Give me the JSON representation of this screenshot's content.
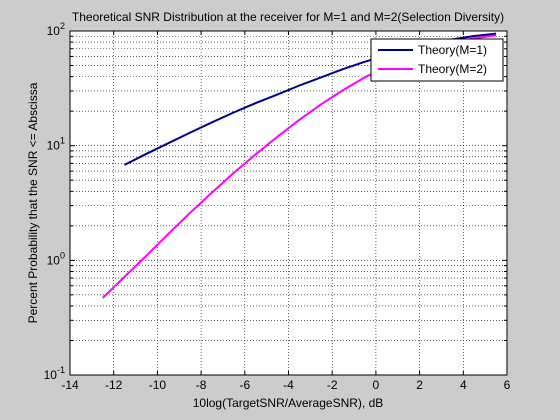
{
  "chart_data": {
    "type": "line",
    "title": "Theoretical SNR Distribution at the receiver for M=1 and M=2(Selection Diversity)",
    "xlabel": "10log(TargetSNR/AverageSNR), dB",
    "ylabel": "Percent Probability that the SNR <= Abscissa",
    "xlim": [
      -14,
      6
    ],
    "ylim": [
      0.1,
      100
    ],
    "yscale": "log",
    "grid": true,
    "legend_position": "top-right",
    "x_ticks": [
      -14,
      -12,
      -10,
      -8,
      -6,
      -4,
      -2,
      0,
      2,
      4,
      6
    ],
    "x_tick_labels": [
      "-14",
      "-12",
      "-10",
      "-8",
      "-6",
      "-4",
      "-2",
      "0",
      "2",
      "4",
      "6"
    ],
    "y_ticks": [
      {
        "value": 0.1,
        "base": "10",
        "exp": "-1"
      },
      {
        "value": 1,
        "base": "10",
        "exp": "0"
      },
      {
        "value": 10,
        "base": "10",
        "exp": "1"
      },
      {
        "value": 100,
        "base": "10",
        "exp": "2"
      }
    ],
    "series": [
      {
        "name": "Theory(M=1)",
        "color": "#00008b",
        "x": [
          -11.5,
          -10.5,
          -9.5,
          -8.5,
          -7.5,
          -6.5,
          -5.5,
          -4.5,
          -3.5,
          -2.5,
          -1.5,
          -0.5,
          0.5,
          1.5,
          2.5,
          3.5,
          4.5,
          5.5
        ],
        "y": [
          6.8,
          8.5,
          10.5,
          13.0,
          16.0,
          19.5,
          23.5,
          28.0,
          33.5,
          39.5,
          46.5,
          54.0,
          61.5,
          69.5,
          77.5,
          84.5,
          90.5,
          95.0
        ]
      },
      {
        "name": "Theory(M=2)",
        "color": "#ff00ff",
        "x": [
          -12.5,
          -11.5,
          -10.5,
          -9.5,
          -8.5,
          -7.5,
          -6.5,
          -5.5,
          -4.5,
          -3.5,
          -2.5,
          -1.5,
          -0.5,
          0.5,
          1.5,
          2.5,
          3.5,
          4.5,
          5.5
        ],
        "y": [
          0.47,
          0.72,
          1.1,
          1.7,
          2.6,
          3.9,
          5.8,
          8.4,
          12.0,
          16.8,
          23.0,
          30.5,
          39.5,
          49.5,
          60.0,
          70.0,
          79.0,
          86.5,
          92.0
        ]
      }
    ]
  }
}
